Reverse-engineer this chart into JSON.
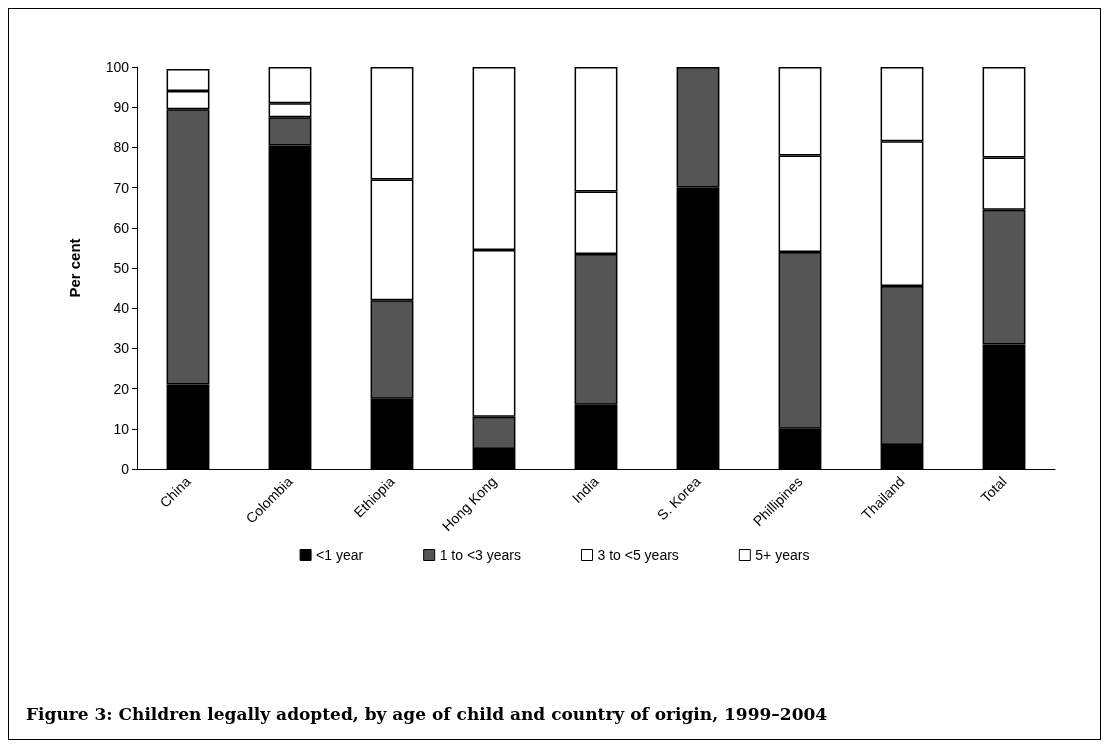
{
  "chart_data": {
    "type": "bar",
    "title": "Figure 3: Children legally adopted, by age of child and country of origin, 1999–2004",
    "ylabel": "Per cent",
    "categories": [
      "China",
      "Colombia",
      "Ethiopia",
      "Hong Kong",
      "India",
      "S. Korea",
      "Phillipines",
      "Thailand",
      "Total"
    ],
    "series": [
      {
        "name": "<1 year",
        "color": "#000000",
        "values": [
          21,
          80.5,
          17.5,
          5,
          16,
          70,
          10,
          6,
          31
        ]
      },
      {
        "name": "1 to <3 years",
        "color": "#555555",
        "values": [
          68.5,
          7,
          24.5,
          8,
          37.5,
          30,
          44,
          39.5,
          33.5
        ]
      },
      {
        "name": "3 to <5 years",
        "color": "#ffffff",
        "values": [
          4.5,
          3.5,
          30,
          41.5,
          15.5,
          0,
          24,
          36,
          13
        ]
      },
      {
        "name": "5+ years",
        "color": "#ffffff",
        "values": [
          5.5,
          9,
          28,
          45.5,
          31,
          0,
          22,
          18.5,
          22.5
        ]
      }
    ],
    "stacked": true,
    "ylim": [
      0,
      100
    ],
    "yticks": [
      0,
      10,
      20,
      30,
      40,
      50,
      60,
      70,
      80,
      90,
      100
    ],
    "grid": false,
    "legend": "bottom"
  }
}
